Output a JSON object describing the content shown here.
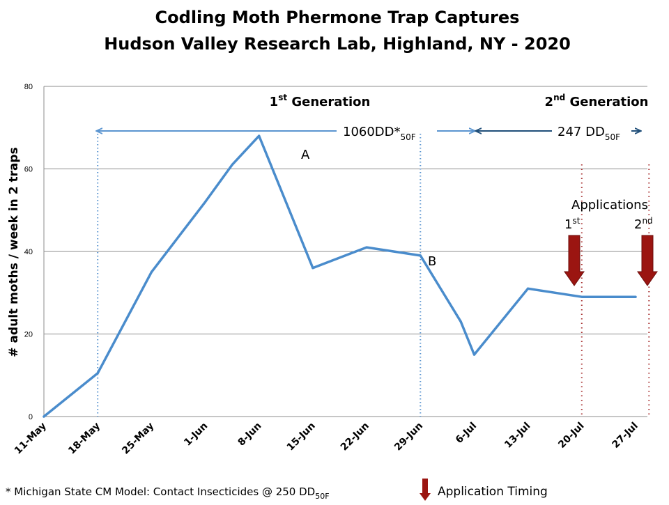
{
  "colors": {
    "series": "#4a8ccc",
    "grid": "#8c8c8c",
    "arrow_first_generation": "#5a94d0",
    "arrow_second_generation": "#1f4e79",
    "application_arrow": "#9b1511",
    "application_line": "#a83232"
  },
  "chart_data": {
    "type": "line",
    "title": "Codling Moth Phermone Trap Captures",
    "subtitle": "Hudson Valley Research Lab, Highland, NY - 2020",
    "xlabel": "",
    "ylabel": "# adult moths / week in 2 traps",
    "ylim": [
      0,
      80
    ],
    "y_ticks": [
      "0",
      "20",
      "40",
      "60",
      "80"
    ],
    "grid": true,
    "categories": [
      "11-May",
      "18-May",
      "25-May",
      "1-Jun",
      "8-Jun",
      "15-Jun",
      "22-Jun",
      "29-Jun",
      "6-Jul",
      "13-Jul",
      "20-Jul",
      "27-Jul"
    ],
    "x": [
      0,
      1,
      2,
      3,
      3.5,
      4,
      5,
      6,
      7,
      7.75,
      8,
      9,
      10,
      10.5,
      11
    ],
    "values": [
      0,
      10.5,
      35,
      52,
      61,
      68,
      36,
      41,
      39,
      23,
      15,
      31,
      29,
      29,
      29
    ],
    "series": [
      {
        "values": [
          0,
          10.5,
          35,
          52,
          61,
          68,
          36,
          41,
          39,
          23,
          15,
          31,
          29,
          29,
          29
        ]
      }
    ],
    "dotted_reference_lines_x": [
      1,
      7
    ],
    "application_lines_x": [
      10,
      11.25
    ]
  },
  "annotations": {
    "first_generation": {
      "prefix": "1",
      "sup": "st",
      "suffix": " Generation"
    },
    "second_generation": {
      "prefix": "2",
      "sup": "nd",
      "suffix": "  Generation"
    },
    "dd_first": {
      "main": "1060DD*",
      "sub": "50F"
    },
    "dd_second": {
      "main": "247 DD",
      "sub": "50F"
    },
    "point_a": "A",
    "point_b": "B",
    "applications_label": "Applications",
    "first_application": {
      "main": "1",
      "sup": "st"
    },
    "second_application": {
      "main": "2",
      "sup": "nd"
    }
  },
  "footnote": {
    "main": "* Michigan State CM Model: Contact Insecticides @ 250 DD",
    "sub": "50F"
  },
  "legend": {
    "application_timing": "Application Timing",
    "icon": "down-arrow-icon"
  }
}
